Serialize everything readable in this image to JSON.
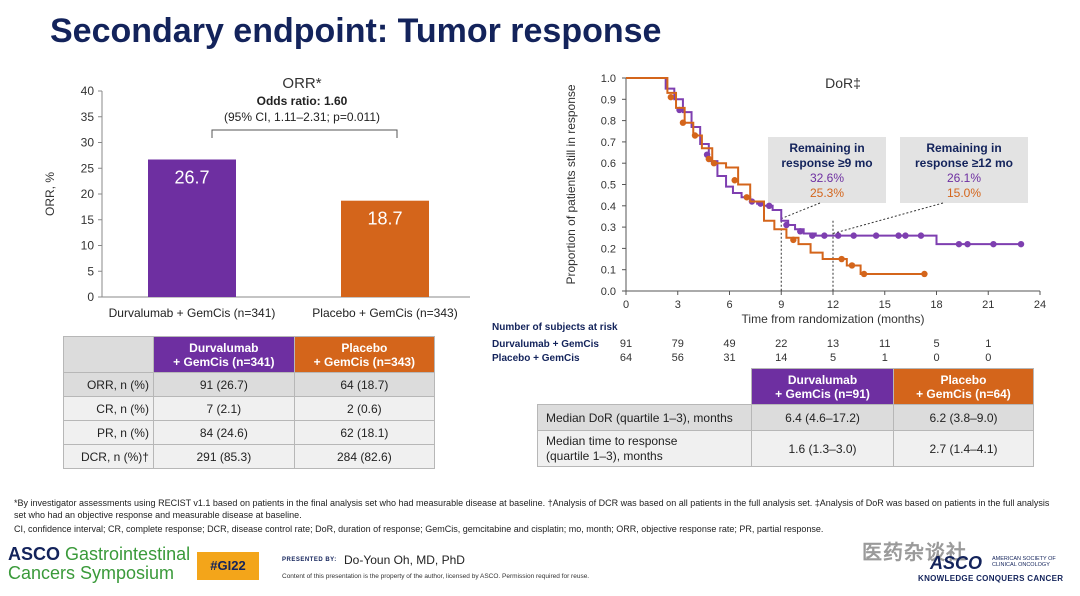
{
  "title": "Secondary endpoint: Tumor response",
  "chart_data": [
    {
      "type": "bar",
      "title": "ORR*",
      "subtitle": "Odds ratio: 1.60",
      "subtitle2": "(95% CI, 1.11–2.31; p=0.011)",
      "ylabel": "ORR, %",
      "ylim": [
        0,
        40
      ],
      "yticks": [
        0,
        5,
        10,
        15,
        20,
        25,
        30,
        35,
        40
      ],
      "categories": [
        "Durvalumab + GemCis (n=341)",
        "Placebo + GemCis (n=343)"
      ],
      "values": [
        26.7,
        18.7
      ],
      "value_labels": [
        "26.7",
        "18.7"
      ],
      "colors": [
        "#6e2fa1",
        "#d4651b"
      ]
    },
    {
      "type": "line",
      "title": "DoR‡",
      "xlabel": "Time from randomization (months)",
      "ylabel": "Proportion of patients still in response",
      "xlim": [
        0,
        24
      ],
      "ylim": [
        0,
        1.0
      ],
      "xticks": [
        0,
        3,
        6,
        9,
        12,
        15,
        18,
        21,
        24
      ],
      "yticks": [
        "0.0",
        "0.1",
        "0.2",
        "0.3",
        "0.4",
        "0.5",
        "0.6",
        "0.7",
        "0.8",
        "0.9",
        "1.0"
      ],
      "series": [
        {
          "name": "Durvalumab + GemCis",
          "color": "#7e3fb0",
          "x": [
            0,
            1.9,
            2.3,
            2.8,
            3.3,
            3.8,
            4.3,
            4.8,
            5.3,
            5.8,
            6.2,
            6.7,
            7.2,
            7.6,
            8.0,
            8.5,
            9.0,
            9.4,
            9.8,
            10.3,
            11.0,
            12.0,
            13.0,
            15.0,
            17.5,
            18.0,
            19.0,
            20.0,
            22.9
          ],
          "y": [
            1.0,
            1.0,
            0.95,
            0.9,
            0.84,
            0.77,
            0.69,
            0.61,
            0.54,
            0.49,
            0.46,
            0.44,
            0.42,
            0.41,
            0.4,
            0.38,
            0.33,
            0.31,
            0.29,
            0.27,
            0.26,
            0.26,
            0.26,
            0.26,
            0.26,
            0.22,
            0.22,
            0.22,
            0.22
          ],
          "censor_x": [
            3.1,
            4.7,
            7.3,
            7.8,
            8.3,
            9.3,
            10.1,
            10.8,
            11.5,
            12.3,
            13.2,
            14.5,
            15.8,
            16.2,
            17.1,
            19.3,
            19.8,
            21.3,
            22.9
          ],
          "censor_y": [
            0.85,
            0.64,
            0.42,
            0.41,
            0.4,
            0.31,
            0.28,
            0.26,
            0.26,
            0.26,
            0.26,
            0.26,
            0.26,
            0.26,
            0.26,
            0.22,
            0.22,
            0.22,
            0.22
          ]
        },
        {
          "name": "Placebo + GemCis",
          "color": "#d4651b",
          "x": [
            0,
            1.9,
            2.4,
            2.9,
            3.4,
            3.9,
            4.4,
            5.0,
            5.8,
            6.5,
            7.2,
            8.0,
            8.6,
            9.3,
            10.0,
            10.7,
            11.4,
            12.1,
            12.8,
            13.6,
            17.3
          ],
          "y": [
            1.0,
            1.0,
            0.93,
            0.86,
            0.79,
            0.73,
            0.67,
            0.6,
            0.58,
            0.5,
            0.42,
            0.33,
            0.29,
            0.25,
            0.22,
            0.18,
            0.15,
            0.15,
            0.12,
            0.08,
            0.08
          ],
          "censor_x": [
            2.6,
            3.3,
            4.0,
            4.8,
            5.1,
            6.3,
            7.0,
            9.7,
            12.5,
            13.1,
            13.8,
            17.3
          ],
          "censor_y": [
            0.91,
            0.79,
            0.73,
            0.62,
            0.6,
            0.52,
            0.44,
            0.24,
            0.15,
            0.12,
            0.08,
            0.08
          ]
        }
      ],
      "annotations": [
        {
          "heading1": "Remaining in",
          "heading2": "response ≥9 mo",
          "val_durva": "32.6%",
          "val_placebo": "25.3%",
          "x": 9
        },
        {
          "heading1": "Remaining in",
          "heading2": "response ≥12 mo",
          "val_durva": "26.1%",
          "val_placebo": "15.0%",
          "x": 12
        }
      ],
      "risk_table": {
        "header": "Number of subjects at risk",
        "rows": [
          {
            "label": "Durvalumab + GemCis",
            "values": [
              "91",
              "79",
              "49",
              "22",
              "13",
              "11",
              "5",
              "1"
            ]
          },
          {
            "label": "Placebo + GemCis",
            "values": [
              "64",
              "56",
              "31",
              "14",
              "5",
              "1",
              "0",
              "0"
            ]
          }
        ]
      }
    }
  ],
  "orr_table": {
    "col1": [
      "Durvalumab",
      "+ GemCis (n=341)"
    ],
    "col2": [
      "Placebo",
      "+ GemCis (n=343)"
    ],
    "rows": [
      {
        "label": "ORR, n (%)",
        "a": "91 (26.7)",
        "b": "64 (18.7)"
      },
      {
        "label": "CR, n (%)",
        "a": "7 (2.1)",
        "b": "2 (0.6)"
      },
      {
        "label": "PR, n (%)",
        "a": "84 (24.6)",
        "b": "62 (18.1)"
      },
      {
        "label": "DCR, n (%)†",
        "a": "291 (85.3)",
        "b": "284 (82.6)"
      }
    ]
  },
  "dor_table": {
    "col1": [
      "Durvalumab",
      "+ GemCis (n=91)"
    ],
    "col2": [
      "Placebo",
      "+ GemCis (n=64)"
    ],
    "rows": [
      {
        "label": "Median DoR (quartile 1–3), months",
        "a": "6.4 (4.6–17.2)",
        "b": "6.2 (3.8–9.0)"
      },
      {
        "label": "Median time to response\n(quartile 1–3), months",
        "a": "1.6 (1.3–3.0)",
        "b": "2.7 (1.4–4.1)"
      }
    ]
  },
  "footnotes": {
    "line1": "*By investigator assessments using RECIST v1.1 based on patients in the final analysis set who had measurable disease at baseline. †Analysis of DCR was based on all patients in the full analysis set. ‡Analysis of DoR was based on patients in the full analysis set who had an objective response and measurable disease at baseline.",
    "line2": "CI, confidence interval; CR, complete response; DCR, disease control rate; DoR, duration of response; GemCis, gemcitabine and cisplatin; mo, month; ORR, objective response rate; PR, partial response."
  },
  "footer": {
    "logo_asco": "ASCO",
    "logo_gi": "Gastrointestinal",
    "logo_line2": "Cancers Symposium",
    "hashtag": "#GI22",
    "presented_by_label": "PRESENTED BY:",
    "presenter": "Do-Youn Oh, MD, PhD",
    "copyright": "Content of this presentation is the property of the author, licensed by ASCO. Permission required for reuse.",
    "watermark": "医药杂谈社",
    "asco_right_big": "ASCO",
    "asco_right_small1": "AMERICAN SOCIETY OF",
    "asco_right_small2": "CLINICAL ONCOLOGY",
    "asco_tagline": "KNOWLEDGE CONQUERS CANCER"
  }
}
